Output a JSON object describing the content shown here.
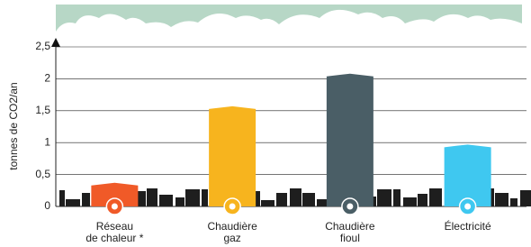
{
  "chart_data": {
    "type": "bar",
    "y_label": "tonnes de CO2/an",
    "categories": [
      [
        "Réseau",
        "de chaleur *"
      ],
      [
        "Chaudière",
        "gaz"
      ],
      [
        "Chaudière",
        "fioul"
      ],
      [
        "Électricité"
      ]
    ],
    "values": [
      0.37,
      1.57,
      2.08,
      0.97
    ],
    "colors": [
      "#f05a28",
      "#f7b41e",
      "#4a5e66",
      "#3fc8f0"
    ],
    "ylim": [
      0,
      2.5
    ],
    "yticks": [
      0,
      {
        "value": 0.5,
        "label": "0,5"
      },
      1,
      {
        "value": 1.5,
        "label": "1,5"
      },
      2,
      {
        "value": 2.5,
        "label": "2,5"
      }
    ],
    "grid": true
  }
}
